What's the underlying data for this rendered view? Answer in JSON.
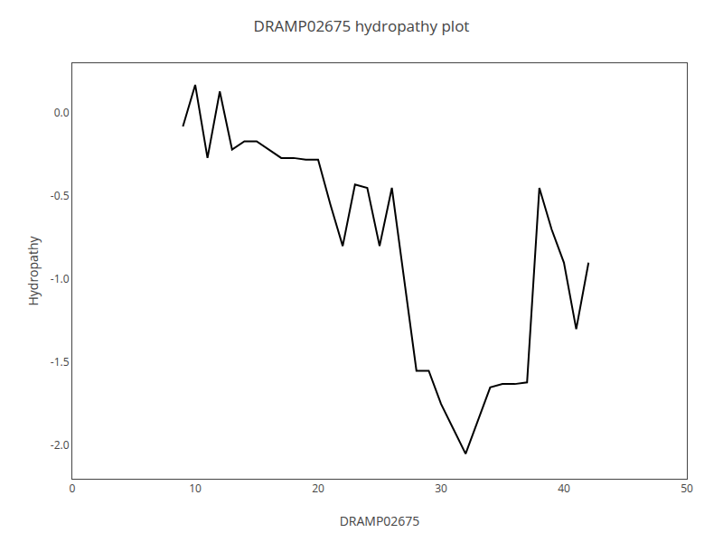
{
  "chart_data": {
    "type": "line",
    "title": "DRAMP02675 hydropathy plot",
    "xlabel": "DRAMP02675",
    "ylabel": "Hydropathy",
    "x": [
      9,
      10,
      11,
      12,
      13,
      14,
      15,
      16,
      17,
      18,
      19,
      20,
      21,
      22,
      23,
      24,
      25,
      26,
      27,
      28,
      29,
      30,
      31,
      32,
      33,
      34,
      35,
      36,
      37,
      38,
      39,
      40,
      41,
      42
    ],
    "values": [
      -0.08,
      0.17,
      -0.27,
      0.13,
      -0.22,
      -0.17,
      -0.17,
      -0.22,
      -0.27,
      -0.27,
      -0.28,
      -0.28,
      -0.55,
      -0.8,
      -0.43,
      -0.45,
      -0.8,
      -0.45,
      -1.0,
      -1.55,
      -1.55,
      -1.75,
      -1.9,
      -2.05,
      -1.85,
      -1.65,
      -1.63,
      -1.63,
      -1.62,
      -0.45,
      -0.7,
      -0.9,
      -1.3,
      -0.9
    ],
    "color": "black",
    "xlim": [
      0,
      50
    ],
    "ylim": [
      -2.2,
      0.3
    ],
    "xticks": [
      0,
      10,
      20,
      30,
      40,
      50
    ],
    "yticks": [
      {
        "value": 0.0,
        "label": "0.0"
      },
      -0.5,
      {
        "value": -1.0,
        "label": "-1.0"
      },
      -1.5,
      {
        "value": -2.0,
        "label": "-2.0"
      }
    ],
    "grid": false
  }
}
